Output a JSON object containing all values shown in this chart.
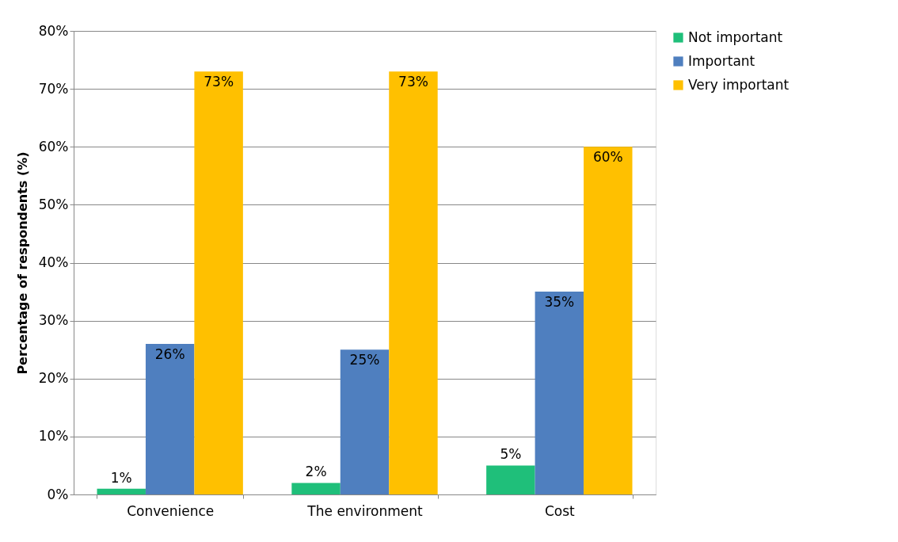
{
  "chart_data": {
    "type": "bar",
    "ylabel": "Percentage of respondents (%)",
    "categories": [
      "Convenience",
      "The environment",
      "Cost"
    ],
    "series": [
      {
        "name": "Not important",
        "color": "#1fbf7a",
        "values": [
          1,
          2,
          5
        ],
        "value_labels": [
          "1%",
          "2%",
          "5%"
        ]
      },
      {
        "name": "Important",
        "color": "#4f7fbf",
        "values": [
          26,
          25,
          35
        ],
        "value_labels": [
          "26%",
          "25%",
          "35%"
        ]
      },
      {
        "name": "Very important",
        "color": "#ffc000",
        "values": [
          73,
          73,
          60
        ],
        "value_labels": [
          "73%",
          "73%",
          "60%"
        ]
      }
    ],
    "ylim": [
      0,
      80
    ],
    "yticks": [
      {
        "value": 0,
        "label": "0%"
      },
      {
        "value": 10,
        "label": "10%"
      },
      {
        "value": 20,
        "label": "20%"
      },
      {
        "value": 30,
        "label": "30%"
      },
      {
        "value": 40,
        "label": "40%"
      },
      {
        "value": 50,
        "label": "50%"
      },
      {
        "value": 60,
        "label": "60%"
      },
      {
        "value": 70,
        "label": "70%"
      },
      {
        "value": 80,
        "label": "80%"
      }
    ],
    "grid": "y",
    "legend": "right"
  }
}
